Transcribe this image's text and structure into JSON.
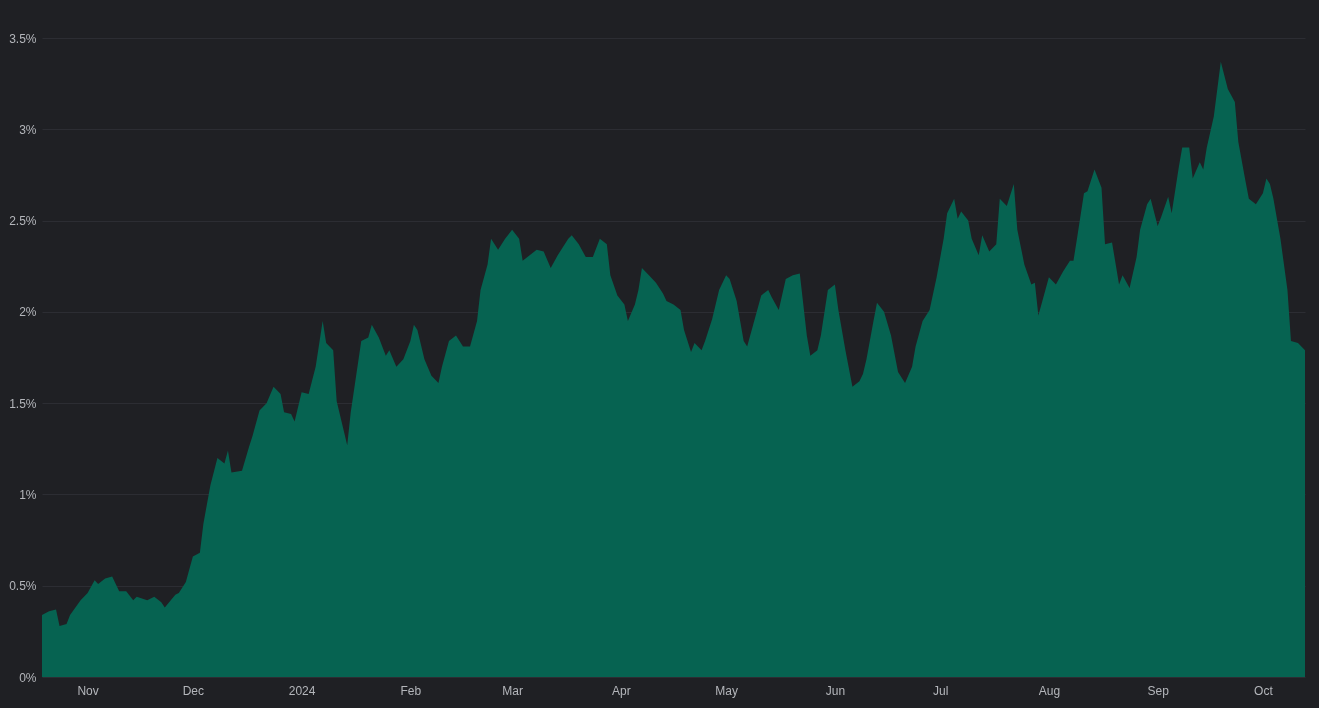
{
  "chart_data": {
    "type": "area",
    "grid": "y",
    "xlim": [
      "2023-10-19",
      "2024-10-13"
    ],
    "xticks": [
      {
        "value": "2023-11-01",
        "label": "Nov"
      },
      {
        "value": "2023-12-01",
        "label": "Dec"
      },
      {
        "value": "2024-01-01",
        "label": "2024"
      },
      {
        "value": "2024-02-01",
        "label": "Feb"
      },
      {
        "value": "2024-03-01",
        "label": "Mar"
      },
      {
        "value": "2024-04-01",
        "label": "Apr"
      },
      {
        "value": "2024-05-01",
        "label": "May"
      },
      {
        "value": "2024-06-01",
        "label": "Jun"
      },
      {
        "value": "2024-07-01",
        "label": "Jul"
      },
      {
        "value": "2024-08-01",
        "label": "Aug"
      },
      {
        "value": "2024-09-01",
        "label": "Sep"
      },
      {
        "value": "2024-10-01",
        "label": "Oct"
      }
    ],
    "ylim": [
      0,
      3.5
    ],
    "yticks": [
      {
        "value": 0,
        "label": "0%"
      },
      {
        "value": 0.5,
        "label": "0.5%"
      },
      {
        "value": 1,
        "label": "1%"
      },
      {
        "value": 1.5,
        "label": "1.5%"
      },
      {
        "value": 2,
        "label": "2%"
      },
      {
        "value": 2.5,
        "label": "2.5%"
      },
      {
        "value": 3,
        "label": "3%"
      },
      {
        "value": 3.5,
        "label": "3.5%"
      }
    ],
    "x": [
      "2023-10-19",
      "2023-10-21",
      "2023-10-23",
      "2023-10-24",
      "2023-10-26",
      "2023-10-27",
      "2023-10-30",
      "2023-11-01",
      "2023-11-03",
      "2023-11-04",
      "2023-11-06",
      "2023-11-08",
      "2023-11-10",
      "2023-11-12",
      "2023-11-14",
      "2023-11-15",
      "2023-11-18",
      "2023-11-20",
      "2023-11-22",
      "2023-11-23",
      "2023-11-26",
      "2023-11-27",
      "2023-11-29",
      "2023-12-01",
      "2023-12-03",
      "2023-12-04",
      "2023-12-06",
      "2023-12-08",
      "2023-12-10",
      "2023-12-11",
      "2023-12-12",
      "2023-12-15",
      "2023-12-17",
      "2023-12-18",
      "2023-12-20",
      "2023-12-22",
      "2023-12-24",
      "2023-12-26",
      "2023-12-27",
      "2023-12-29",
      "2023-12-30",
      "2024-01-01",
      "2024-01-03",
      "2024-01-05",
      "2024-01-07",
      "2024-01-08",
      "2024-01-10",
      "2024-01-11",
      "2024-01-14",
      "2024-01-15",
      "2024-01-18",
      "2024-01-20",
      "2024-01-21",
      "2024-01-23",
      "2024-01-25",
      "2024-01-26",
      "2024-01-28",
      "2024-01-30",
      "2024-02-01",
      "2024-02-02",
      "2024-02-03",
      "2024-02-05",
      "2024-02-07",
      "2024-02-09",
      "2024-02-10",
      "2024-02-12",
      "2024-02-14",
      "2024-02-16",
      "2024-02-18",
      "2024-02-20",
      "2024-02-21",
      "2024-02-23",
      "2024-02-24",
      "2024-02-26",
      "2024-02-28",
      "2024-03-01",
      "2024-03-03",
      "2024-03-04",
      "2024-03-06",
      "2024-03-08",
      "2024-03-10",
      "2024-03-12",
      "2024-03-14",
      "2024-03-17",
      "2024-03-18",
      "2024-03-20",
      "2024-03-22",
      "2024-03-24",
      "2024-03-26",
      "2024-03-28",
      "2024-03-29",
      "2024-03-31",
      "2024-04-02",
      "2024-04-03",
      "2024-04-05",
      "2024-04-06",
      "2024-04-07",
      "2024-04-09",
      "2024-04-11",
      "2024-04-13",
      "2024-04-14",
      "2024-04-16",
      "2024-04-18",
      "2024-04-19",
      "2024-04-21",
      "2024-04-22",
      "2024-04-24",
      "2024-04-25",
      "2024-04-27",
      "2024-04-29",
      "2024-05-01",
      "2024-05-02",
      "2024-05-04",
      "2024-05-06",
      "2024-05-07",
      "2024-05-09",
      "2024-05-11",
      "2024-05-13",
      "2024-05-14",
      "2024-05-16",
      "2024-05-18",
      "2024-05-20",
      "2024-05-22",
      "2024-05-24",
      "2024-05-25",
      "2024-05-27",
      "2024-05-28",
      "2024-05-30",
      "2024-06-01",
      "2024-06-02",
      "2024-06-04",
      "2024-06-06",
      "2024-06-08",
      "2024-06-09",
      "2024-06-10",
      "2024-06-12",
      "2024-06-13",
      "2024-06-15",
      "2024-06-17",
      "2024-06-19",
      "2024-06-21",
      "2024-06-23",
      "2024-06-24",
      "2024-06-26",
      "2024-06-28",
      "2024-06-30",
      "2024-07-02",
      "2024-07-03",
      "2024-07-05",
      "2024-07-06",
      "2024-07-07",
      "2024-07-09",
      "2024-07-10",
      "2024-07-12",
      "2024-07-13",
      "2024-07-15",
      "2024-07-17",
      "2024-07-18",
      "2024-07-20",
      "2024-07-22",
      "2024-07-23",
      "2024-07-25",
      "2024-07-27",
      "2024-07-28",
      "2024-07-29",
      "2024-07-31",
      "2024-08-01",
      "2024-08-03",
      "2024-08-05",
      "2024-08-07",
      "2024-08-08",
      "2024-08-09",
      "2024-08-11",
      "2024-08-12",
      "2024-08-14",
      "2024-08-16",
      "2024-08-17",
      "2024-08-19",
      "2024-08-21",
      "2024-08-22",
      "2024-08-24",
      "2024-08-26",
      "2024-08-27",
      "2024-08-29",
      "2024-08-30",
      "2024-09-01",
      "2024-09-02",
      "2024-09-04",
      "2024-09-05",
      "2024-09-07",
      "2024-09-08",
      "2024-09-10",
      "2024-09-11",
      "2024-09-13",
      "2024-09-14",
      "2024-09-15",
      "2024-09-17",
      "2024-09-19",
      "2024-09-21",
      "2024-09-23",
      "2024-09-24",
      "2024-09-26",
      "2024-09-27",
      "2024-09-29",
      "2024-10-01",
      "2024-10-02",
      "2024-10-03",
      "2024-10-04",
      "2024-10-06",
      "2024-10-08",
      "2024-10-09",
      "2024-10-11",
      "2024-10-13"
    ],
    "series": [
      {
        "color": "#066351",
        "values": [
          0.34,
          0.36,
          0.37,
          0.28,
          0.29,
          0.34,
          0.42,
          0.46,
          0.53,
          0.51,
          0.54,
          0.55,
          0.47,
          0.47,
          0.42,
          0.44,
          0.42,
          0.44,
          0.41,
          0.38,
          0.45,
          0.46,
          0.52,
          0.66,
          0.68,
          0.84,
          1.05,
          1.2,
          1.17,
          1.24,
          1.12,
          1.13,
          1.26,
          1.32,
          1.46,
          1.5,
          1.59,
          1.55,
          1.45,
          1.44,
          1.4,
          1.56,
          1.55,
          1.7,
          1.95,
          1.83,
          1.79,
          1.51,
          1.27,
          1.45,
          1.84,
          1.86,
          1.93,
          1.86,
          1.76,
          1.79,
          1.7,
          1.74,
          1.84,
          1.93,
          1.9,
          1.74,
          1.65,
          1.61,
          1.7,
          1.84,
          1.87,
          1.81,
          1.81,
          1.95,
          2.12,
          2.26,
          2.4,
          2.34,
          2.4,
          2.45,
          2.4,
          2.28,
          2.31,
          2.34,
          2.33,
          2.24,
          2.31,
          2.4,
          2.42,
          2.37,
          2.3,
          2.3,
          2.4,
          2.37,
          2.2,
          2.09,
          2.04,
          1.95,
          2.04,
          2.12,
          2.24,
          2.2,
          2.16,
          2.1,
          2.06,
          2.04,
          2.01,
          1.9,
          1.78,
          1.83,
          1.79,
          1.84,
          1.96,
          2.12,
          2.2,
          2.18,
          2.06,
          1.84,
          1.81,
          1.95,
          2.09,
          2.12,
          2.08,
          2.01,
          2.18,
          2.2,
          2.21,
          1.87,
          1.76,
          1.79,
          1.87,
          2.12,
          2.15,
          2.01,
          1.79,
          1.59,
          1.62,
          1.66,
          1.74,
          1.95,
          2.05,
          2.0,
          1.87,
          1.67,
          1.61,
          1.7,
          1.81,
          1.95,
          2.01,
          2.19,
          2.4,
          2.54,
          2.62,
          2.51,
          2.55,
          2.5,
          2.4,
          2.31,
          2.42,
          2.33,
          2.37,
          2.62,
          2.58,
          2.7,
          2.45,
          2.26,
          2.15,
          2.16,
          1.98,
          2.12,
          2.19,
          2.15,
          2.22,
          2.28,
          2.28,
          2.4,
          2.65,
          2.66,
          2.78,
          2.68,
          2.37,
          2.38,
          2.15,
          2.2,
          2.13,
          2.3,
          2.45,
          2.59,
          2.62,
          2.47,
          2.52,
          2.63,
          2.54,
          2.79,
          2.9,
          2.9,
          2.73,
          2.82,
          2.78,
          2.9,
          3.07,
          3.37,
          3.22,
          3.15,
          2.93,
          2.72,
          2.62,
          2.59,
          2.65,
          2.73,
          2.7,
          2.62,
          2.4,
          2.12,
          1.84,
          1.83,
          1.79
        ]
      }
    ]
  }
}
